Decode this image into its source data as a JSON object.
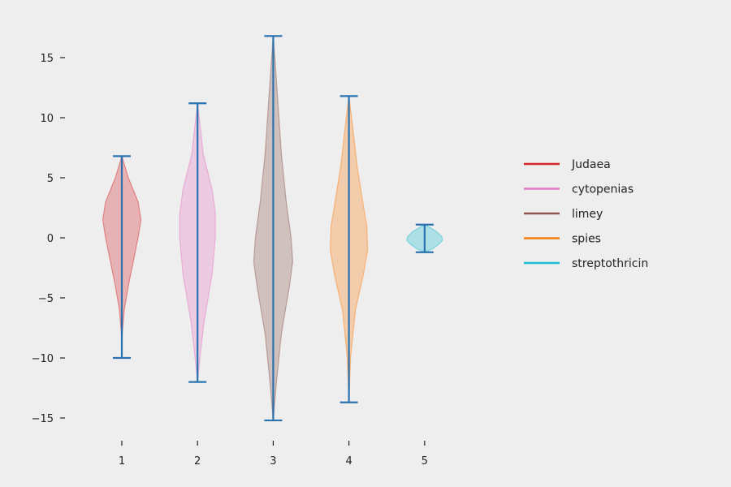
{
  "chart_data": {
    "type": "violin",
    "title": "",
    "xlabel": "",
    "ylabel": "",
    "categories": [
      "1",
      "2",
      "3",
      "4",
      "5"
    ],
    "ylim": [
      -16.5,
      18.5
    ],
    "yticks": [
      15,
      10,
      5,
      0,
      -5,
      -10,
      -15
    ],
    "ytick_labels": [
      "15",
      "10",
      "5",
      "0",
      "−5",
      "−10",
      "−15"
    ],
    "grid": false,
    "legend_position": "right",
    "range_line_color": "#2b73b0",
    "series": [
      {
        "name": "Judaea",
        "position": 1,
        "color": "#d62728",
        "min": -10.0,
        "max": 6.8,
        "profile": [
          [
            -10.0,
            0.0
          ],
          [
            -8.0,
            0.5
          ],
          [
            -6.0,
            3.0
          ],
          [
            -4.0,
            8.0
          ],
          [
            -2.0,
            14.0
          ],
          [
            0.0,
            20.0
          ],
          [
            1.5,
            23.5
          ],
          [
            3.0,
            20.0
          ],
          [
            5.0,
            8.0
          ],
          [
            6.8,
            0.0
          ]
        ]
      },
      {
        "name": "cytopenias",
        "position": 2,
        "color": "#e377c2",
        "min": -12.0,
        "max": 11.2,
        "profile": [
          [
            -12.0,
            0.0
          ],
          [
            -10.0,
            3.0
          ],
          [
            -7.0,
            8.0
          ],
          [
            -3.0,
            18.0
          ],
          [
            0.0,
            22.0
          ],
          [
            2.0,
            22.0
          ],
          [
            4.0,
            18.0
          ],
          [
            7.0,
            7.0
          ],
          [
            9.5,
            3.0
          ],
          [
            11.2,
            0.0
          ]
        ]
      },
      {
        "name": "limey",
        "position": 3,
        "color": "#8c564b",
        "min": -15.2,
        "max": 16.8,
        "profile": [
          [
            -15.2,
            0.0
          ],
          [
            -12.0,
            4.0
          ],
          [
            -8.0,
            10.0
          ],
          [
            -4.0,
            20.0
          ],
          [
            -2.0,
            24.0
          ],
          [
            0.0,
            22.0
          ],
          [
            3.0,
            16.0
          ],
          [
            7.0,
            10.0
          ],
          [
            11.0,
            6.0
          ],
          [
            14.0,
            3.0
          ],
          [
            16.8,
            0.0
          ]
        ]
      },
      {
        "name": "spies",
        "position": 4,
        "color": "#ff7f0e",
        "min": -13.7,
        "max": 11.8,
        "profile": [
          [
            -13.7,
            0.0
          ],
          [
            -10.0,
            2.0
          ],
          [
            -6.0,
            8.0
          ],
          [
            -3.0,
            18.0
          ],
          [
            -1.0,
            23.0
          ],
          [
            1.0,
            22.0
          ],
          [
            3.0,
            17.0
          ],
          [
            6.0,
            10.0
          ],
          [
            9.0,
            5.0
          ],
          [
            11.8,
            0.0
          ]
        ]
      },
      {
        "name": "streptothricin",
        "position": 5,
        "color": "#17becf",
        "min": -1.2,
        "max": 1.1,
        "profile": [
          [
            -1.2,
            0.0
          ],
          [
            -0.9,
            10.0
          ],
          [
            -0.5,
            18.0
          ],
          [
            -0.2,
            22.0
          ],
          [
            0.1,
            21.0
          ],
          [
            0.5,
            15.0
          ],
          [
            0.8,
            8.0
          ],
          [
            1.1,
            0.0
          ]
        ]
      }
    ]
  }
}
